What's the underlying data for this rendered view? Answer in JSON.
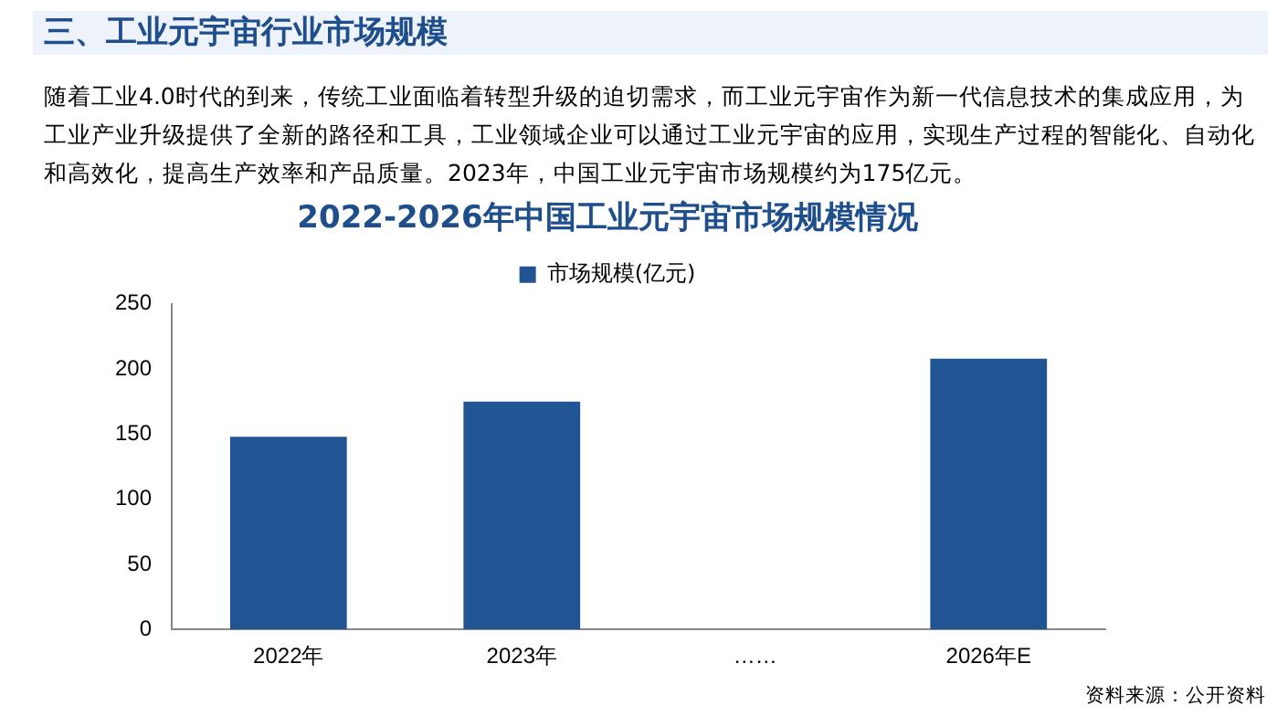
{
  "chart_data": {
    "type": "bar",
    "title": "2022-2026年中国工业元宇宙市场规模情况",
    "annotations": [
      "三、工业元宇宙行业市场规模",
      "随着工业4.0时代的到来，传统工业面临着转型升级的迫切需求，而工业元宇宙作为新一代信息技术的集成应用，为工业产业升级提供了全新的路径和工具，工业领域企业可以通过工业元宇宙的应用，实现生产过程的智能化、自动化和高效化，提高生产效率和产品质量。2023年，中国工业元宇宙市场规模约为175亿元。",
      "资料来源：公开资料"
    ],
    "categories": [
      "2022年",
      "2023年",
      "……",
      "2026年E"
    ],
    "series": [
      {
        "name": "市场规模(亿元)",
        "color": "#215493",
        "values": [
          148,
          175,
          null,
          208
        ]
      }
    ],
    "ylim": [
      0,
      250
    ],
    "yticks": [
      0,
      50,
      100,
      150,
      200,
      250
    ],
    "grid": false,
    "legend": "top"
  }
}
